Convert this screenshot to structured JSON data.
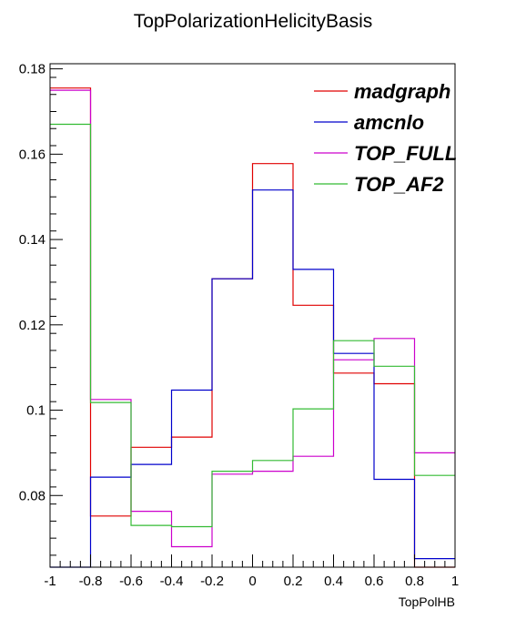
{
  "chart_data": {
    "type": "step",
    "title": "TopPolarizationHelicityBasis",
    "xlabel": "TopPolHB",
    "ylabel": "",
    "xlim": [
      -1,
      1
    ],
    "ylim": [
      0.0632,
      0.1812
    ],
    "x_ticks": [
      "-1",
      "-0.8",
      "-0.6",
      "-0.4",
      "-0.2",
      "0",
      "0.2",
      "0.4",
      "0.6",
      "0.8",
      "1"
    ],
    "y_ticks": [
      "0.08",
      "0.1",
      "0.12",
      "0.14",
      "0.16",
      "0.18"
    ],
    "y_tick_values": [
      0.08,
      0.1,
      0.12,
      0.14,
      0.16,
      0.18
    ],
    "bin_edges": [
      -1,
      -0.8,
      -0.6,
      -0.4,
      -0.2,
      0,
      0.2,
      0.4,
      0.6,
      0.8,
      1
    ],
    "legend_position": "top-right",
    "series": [
      {
        "name": "madgraph",
        "color": "#e00000",
        "values": [
          0.1755,
          0.0752,
          0.0913,
          0.0937,
          0.1308,
          0.1578,
          0.1246,
          0.1087,
          0.1062,
          0.063
        ]
      },
      {
        "name": "amcnlo",
        "color": "#0000cc",
        "values": [
          0.063,
          0.0843,
          0.0873,
          0.1047,
          0.1308,
          0.1516,
          0.133,
          0.1133,
          0.0838,
          0.0652
        ]
      },
      {
        "name": "TOP_FULL",
        "color": "#cc00cc",
        "values": [
          0.175,
          0.1025,
          0.0763,
          0.068,
          0.085,
          0.0857,
          0.0892,
          0.1118,
          0.1168,
          0.09
        ]
      },
      {
        "name": "TOP_AF2",
        "color": "#33bb33",
        "values": [
          0.167,
          0.1018,
          0.073,
          0.0727,
          0.0857,
          0.0882,
          0.1003,
          0.1163,
          0.1103,
          0.0847
        ]
      }
    ]
  }
}
